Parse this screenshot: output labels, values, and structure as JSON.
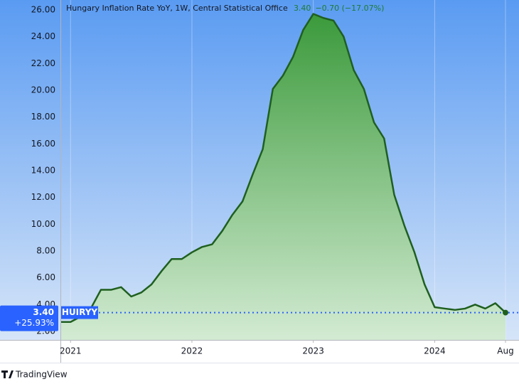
{
  "header": {
    "title": "Hungary Inflation Rate YoY, 1W, Central Statistical Office",
    "last_value": "3.40",
    "change": "−0.70 (−17.07%)"
  },
  "price_tag": {
    "value": "3.40",
    "percent": "+25.93%",
    "symbol": "HUIRYY"
  },
  "footer": {
    "brand": "TradingView"
  },
  "chart_data": {
    "type": "area",
    "color": "#1f5f1f",
    "categories": [
      null,
      "2021",
      null,
      null,
      null,
      null,
      null,
      null,
      null,
      null,
      null,
      null,
      null,
      "2022",
      null,
      null,
      null,
      null,
      null,
      null,
      null,
      null,
      null,
      null,
      null,
      "2023",
      null,
      null,
      null,
      null,
      null,
      null,
      null,
      null,
      null,
      null,
      null,
      "2024",
      null,
      null,
      null,
      null,
      null,
      null,
      "Aug"
    ],
    "values": [
      2.7,
      2.7,
      3.1,
      3.7,
      5.1,
      5.1,
      5.3,
      4.6,
      4.9,
      5.5,
      6.5,
      7.4,
      7.4,
      7.9,
      8.3,
      8.5,
      9.5,
      10.7,
      11.7,
      13.7,
      15.6,
      20.1,
      21.1,
      22.5,
      24.5,
      25.7,
      25.4,
      25.2,
      24.0,
      21.5,
      20.1,
      17.6,
      16.4,
      12.2,
      9.9,
      7.9,
      5.5,
      3.8,
      3.7,
      3.6,
      3.7,
      4.0,
      3.7,
      4.1,
      3.4
    ],
    "ylim": [
      1.36,
      26.74
    ],
    "yticks": [
      {
        "value": 2,
        "label": "2.00"
      },
      {
        "value": 4,
        "label": "4.00"
      },
      {
        "value": 6,
        "label": "6.00"
      },
      {
        "value": 8,
        "label": "8.00"
      },
      {
        "value": 10,
        "label": "10.00"
      },
      {
        "value": 12,
        "label": "12.00"
      },
      {
        "value": 14,
        "label": "14.00"
      },
      {
        "value": 16,
        "label": "16.00"
      },
      {
        "value": 18,
        "label": "18.00"
      },
      {
        "value": 20,
        "label": "20.00"
      },
      {
        "value": 22,
        "label": "22.00"
      },
      {
        "value": 24,
        "label": "24.00"
      },
      {
        "value": 26,
        "label": "26.00"
      }
    ],
    "grid": true
  }
}
